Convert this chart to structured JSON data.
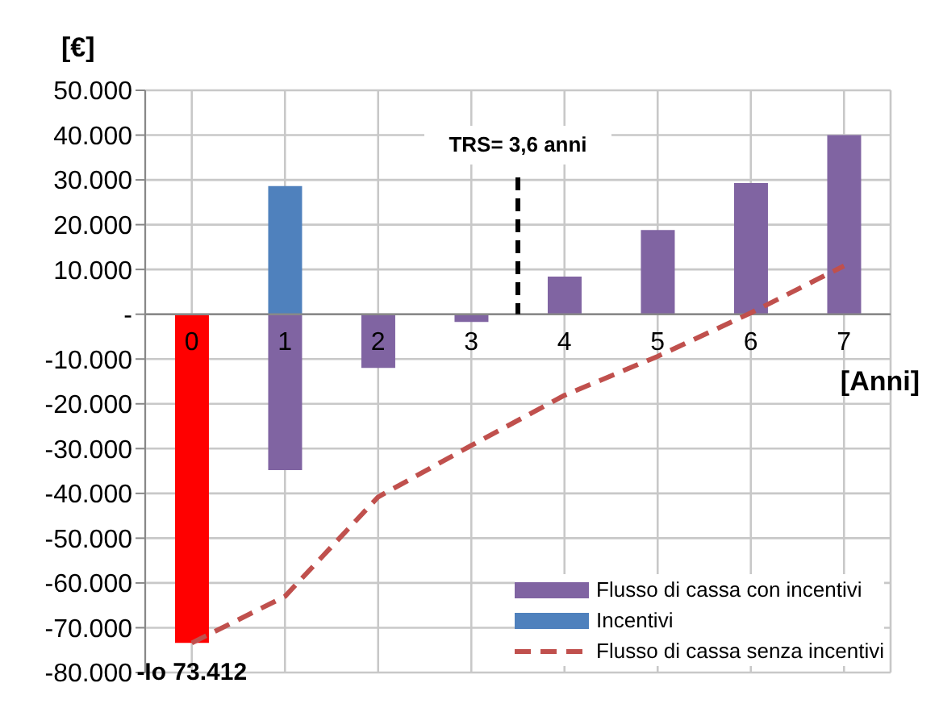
{
  "chart_data": {
    "type": "bar",
    "stacked": true,
    "ylabel": "[€]",
    "xlabel": "[Anni]",
    "categories": [
      "0",
      "1",
      "2",
      "3",
      "4",
      "5",
      "6",
      "7"
    ],
    "series": [
      {
        "name": "Flusso di cassa con incentivi",
        "color": "#8064a2",
        "colors": [
          "#ff0000",
          "#8064a2",
          "#8064a2",
          "#8064a2",
          "#8064a2",
          "#8064a2",
          "#8064a2",
          "#8064a2"
        ],
        "values": [
          -73400,
          -34800,
          -12000,
          -1700,
          8400,
          18800,
          29300,
          40000
        ]
      },
      {
        "name": "Incentivi",
        "color": "#4f81bd",
        "values": [
          null,
          28600,
          null,
          null,
          null,
          null,
          null,
          null
        ]
      },
      {
        "name": "Flusso di cassa senza incentivi",
        "type": "line",
        "color": "#c0504d",
        "line_style": "dashed",
        "marker": "none",
        "values": [
          -73400,
          -63000,
          -40800,
          -29300,
          -18100,
          -9400,
          300,
          10800
        ]
      }
    ],
    "ylim": [
      -80000,
      50000
    ],
    "yticks": [
      {
        "value": -80000,
        "label": "-80.000"
      },
      {
        "value": -70000,
        "label": "-70.000"
      },
      {
        "value": -60000,
        "label": "-60.000"
      },
      {
        "value": -50000,
        "label": "-50.000"
      },
      {
        "value": -40000,
        "label": "-40.000"
      },
      {
        "value": -30000,
        "label": "-30.000"
      },
      {
        "value": -20000,
        "label": "-20.000"
      },
      {
        "value": -10000,
        "label": "-10.000"
      },
      {
        "value": 0,
        "label": "-"
      },
      {
        "value": 10000,
        "label": "10.000"
      },
      {
        "value": 20000,
        "label": "20.000"
      },
      {
        "value": 30000,
        "label": "30.000"
      },
      {
        "value": 40000,
        "label": "40.000"
      },
      {
        "value": 50000,
        "label": "50.000"
      }
    ],
    "annotations": [
      {
        "text": "-Io 73.412",
        "x": "0",
        "y": -73400
      },
      "TRS= 3,6 anni"
    ],
    "grid": true,
    "legend": "bottom right"
  }
}
